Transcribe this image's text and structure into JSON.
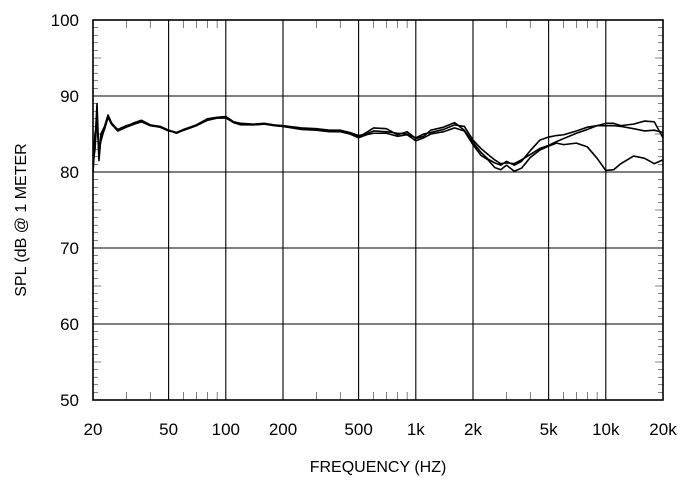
{
  "chart_data": {
    "type": "line",
    "title": "",
    "xlabel": "FREQUENCY  (HZ)",
    "ylabel": "SPL (dB @ 1 METER",
    "xscale": "log",
    "xlim": [
      20,
      20000
    ],
    "ylim": [
      50,
      100
    ],
    "grid": true,
    "legend": "none",
    "color": "#000000",
    "xticks": [
      20,
      50,
      100,
      200,
      500,
      1000,
      2000,
      5000,
      10000,
      20000
    ],
    "xtick_labels": [
      "20",
      "50",
      "100",
      "200",
      "500",
      "1k",
      "2k",
      "5k",
      "10k",
      "20k"
    ],
    "yticks": [
      50,
      60,
      70,
      80,
      90,
      100
    ],
    "ytick_labels": [
      "50",
      "60",
      "70",
      "80",
      "90",
      "100"
    ],
    "series": [
      {
        "x": [
          20,
          20.5,
          21,
          21.5,
          22,
          23,
          24,
          25,
          27,
          30,
          33,
          36,
          40,
          45,
          50,
          55,
          60,
          70,
          80,
          90,
          100,
          110,
          120,
          140,
          160,
          180,
          200,
          250,
          300,
          350,
          400,
          450,
          500,
          550,
          600,
          700,
          800,
          900,
          1000,
          1100,
          1200,
          1400,
          1600,
          1800,
          2000,
          2200,
          2400,
          2600,
          2800,
          3000,
          3300,
          3600,
          4000,
          4500,
          5000,
          5500,
          6000,
          7000,
          8000,
          9000,
          10000,
          11000,
          12000,
          14000,
          16000,
          18000,
          20000
        ],
        "y": [
          80,
          84,
          89,
          82,
          85,
          86,
          87.5,
          86.5,
          85.5,
          86,
          86.5,
          86.8,
          86.2,
          86,
          85.5,
          85.2,
          85.6,
          86.2,
          87,
          87.2,
          87.3,
          86.6,
          86.4,
          86.3,
          86.4,
          86.2,
          86.1,
          85.8,
          85.7,
          85.5,
          85.5,
          85.2,
          84.8,
          85,
          85.4,
          85.3,
          85.1,
          85,
          84.5,
          85,
          85.2,
          85.6,
          86.2,
          86,
          84.2,
          83.1,
          82.3,
          81.6,
          81.1,
          81.2,
          81.1,
          81.6,
          82.3,
          83.1,
          83.5,
          84,
          84.4,
          85.1,
          85.6,
          86.1,
          86.4,
          86.4,
          86.1,
          86.3,
          86.7,
          86.6,
          84.5
        ]
      },
      {
        "x": [
          20,
          20.5,
          21,
          21.5,
          22,
          23,
          24,
          25,
          27,
          30,
          33,
          36,
          40,
          45,
          50,
          55,
          60,
          70,
          80,
          90,
          100,
          110,
          120,
          140,
          160,
          180,
          200,
          250,
          300,
          350,
          400,
          450,
          500,
          550,
          600,
          700,
          800,
          900,
          1000,
          1100,
          1200,
          1400,
          1600,
          1800,
          2000,
          2200,
          2400,
          2600,
          2800,
          3000,
          3300,
          3600,
          4000,
          4500,
          5000,
          5500,
          6000,
          7000,
          8000,
          9000,
          10000,
          11000,
          12000,
          14000,
          16000,
          18000,
          20000
        ],
        "y": [
          81,
          83,
          87.5,
          81.5,
          84.5,
          85.6,
          87.2,
          86.3,
          85.4,
          85.9,
          86.3,
          86.6,
          86.1,
          85.9,
          85.4,
          85.2,
          85.5,
          86.1,
          86.9,
          87.1,
          87.1,
          86.5,
          86.3,
          86.2,
          86.3,
          86.1,
          86,
          85.7,
          85.6,
          85.4,
          85.4,
          85.1,
          84.6,
          85.2,
          85.8,
          85.7,
          84.9,
          85.3,
          84.4,
          84.7,
          85.5,
          85.9,
          86.5,
          85.5,
          83.9,
          82.6,
          81.7,
          81.2,
          80.9,
          81.4,
          80.9,
          81.4,
          82.8,
          84.2,
          84.6,
          84.8,
          84.9,
          85.4,
          85.9,
          86.1,
          86.1,
          86.1,
          86,
          85.7,
          85.4,
          85.5,
          85.2
        ]
      },
      {
        "x": [
          20,
          20.5,
          21,
          21.5,
          22,
          23,
          24,
          25,
          27,
          30,
          33,
          36,
          40,
          45,
          50,
          55,
          60,
          70,
          80,
          90,
          100,
          110,
          120,
          140,
          160,
          180,
          200,
          250,
          300,
          350,
          400,
          450,
          500,
          550,
          600,
          700,
          800,
          900,
          1000,
          1100,
          1200,
          1400,
          1600,
          1800,
          2000,
          2200,
          2400,
          2600,
          2800,
          3000,
          3300,
          3600,
          4000,
          4500,
          5000,
          5500,
          6000,
          7000,
          8000,
          9000,
          10000,
          11000,
          12000,
          14000,
          16000,
          18000,
          20000
        ],
        "y": [
          82,
          85,
          86.5,
          83,
          84,
          85.8,
          87.3,
          86.4,
          85.6,
          86.1,
          86.4,
          86.7,
          86.1,
          86,
          85.5,
          85.1,
          85.5,
          86.1,
          86.8,
          87.1,
          87.2,
          86.5,
          86.2,
          86.2,
          86.3,
          86.1,
          86,
          85.6,
          85.5,
          85.3,
          85.3,
          85,
          84.5,
          84.9,
          85.1,
          85.1,
          84.7,
          84.9,
          84.1,
          84.5,
          85,
          85.3,
          85.8,
          85.4,
          83.6,
          82.2,
          81.6,
          80.6,
          80.3,
          80.9,
          80.1,
          80.5,
          81.9,
          82.9,
          83.4,
          83.8,
          83.6,
          83.8,
          83.3,
          81.8,
          80.2,
          80.3,
          81.1,
          82.1,
          81.8,
          81.1,
          81.6
        ]
      }
    ]
  }
}
